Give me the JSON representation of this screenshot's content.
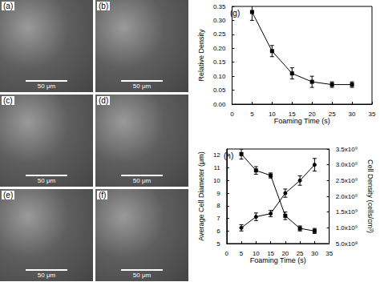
{
  "micrographs": [
    {
      "label": "(a)",
      "scale_bar": "50 μm"
    },
    {
      "label": "(b)",
      "scale_bar": "50 μm"
    },
    {
      "label": "(c)",
      "scale_bar": "50 μm"
    },
    {
      "label": "(d)",
      "scale_bar": "50 μm"
    },
    {
      "label": "(e)",
      "scale_bar": "50 μm"
    },
    {
      "label": "(f)",
      "scale_bar": "50 μm"
    }
  ],
  "chart_data": [
    {
      "type": "line",
      "title": "(g)",
      "x": [
        5,
        10,
        15,
        20,
        25,
        30
      ],
      "xlabel": "Foaming Time (s)",
      "ylabel": "Relative Density",
      "xlim": [
        0,
        35
      ],
      "xticks": [
        0,
        5,
        10,
        15,
        20,
        25,
        30,
        35
      ],
      "ylim": [
        0,
        0.35
      ],
      "yticks": [
        {
          "value": 0,
          "label": "0.00"
        },
        0.05,
        {
          "value": 0.1,
          "label": "0.10"
        },
        0.15,
        {
          "value": 0.2,
          "label": "0.20"
        },
        0.25,
        {
          "value": 0.3,
          "label": "0.30"
        },
        0.35
      ],
      "grid": false,
      "series": [
        {
          "values": [
            0.33,
            0.19,
            0.11,
            0.08,
            0.07,
            0.07
          ],
          "errors": [
            0.03,
            0.02,
            0.02,
            0.02,
            0.01,
            0.01
          ],
          "color": "#000000",
          "marker": "square"
        }
      ]
    },
    {
      "type": "line",
      "title": "(h)",
      "x": [
        5,
        10,
        15,
        20,
        25,
        30
      ],
      "xlabel": "Foaming Time (s)",
      "ylabel": "Average Cell Diameter (μm)",
      "y2label": "Cell Density (cells/cm³)",
      "xlim": [
        0,
        35
      ],
      "xticks": [
        0,
        5,
        10,
        15,
        20,
        25,
        30,
        35
      ],
      "ylim": [
        5,
        12.5
      ],
      "yticks": [
        5,
        6,
        7,
        8,
        9,
        10,
        11,
        12
      ],
      "y2lim": [
        500000000,
        3500000000
      ],
      "y2ticks": [
        {
          "value": 500000000,
          "label": "5.0x10⁸"
        },
        {
          "value": 1000000000,
          "label": "1.0x10⁹"
        },
        {
          "value": 1500000000,
          "label": "1.5x10⁹"
        },
        {
          "value": 2000000000,
          "label": "2.0x10⁹"
        },
        {
          "value": 2500000000,
          "label": "2.5x10⁹"
        },
        {
          "value": 3000000000,
          "label": "3.0x10⁹"
        },
        {
          "value": 3500000000,
          "label": "3.5x10⁹"
        }
      ],
      "grid": false,
      "series": [
        {
          "values": [
            12.1,
            10.8,
            10.4,
            7.2,
            6.2,
            6.0
          ],
          "errors": [
            0.4,
            0.3,
            0.2,
            0.3,
            0.2,
            0.2
          ],
          "color": "#000000",
          "marker": "square"
        },
        {
          "values": [
            1000000000,
            1350000000,
            1450000000,
            2100000000,
            2500000000,
            3000000000
          ],
          "errors": [
            100000000,
            120000000,
            100000000,
            130000000,
            150000000,
            200000000
          ],
          "color": "#000000",
          "marker": "circle",
          "axis": "y2"
        }
      ]
    }
  ]
}
